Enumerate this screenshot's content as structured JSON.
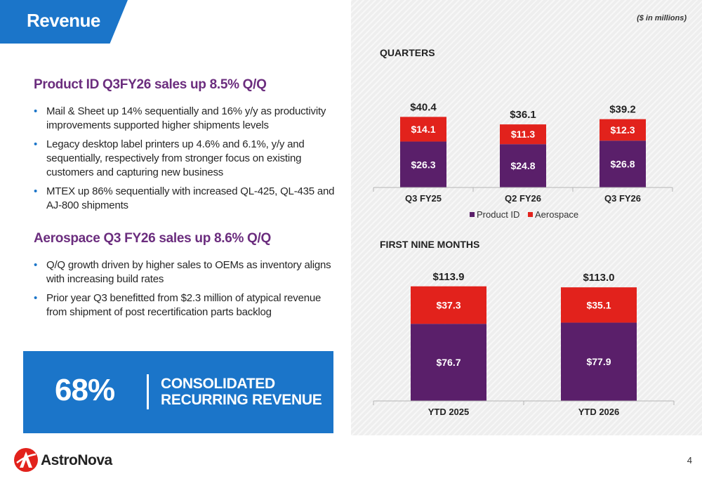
{
  "slide": {
    "title": "Revenue",
    "units_note": "($ in millions)",
    "page_number": "4"
  },
  "left": {
    "section1": {
      "title": "Product ID Q3FY26 sales up 8.5% Q/Q",
      "bullets": [
        "Mail & Sheet up 14% sequentially and 16% y/y as productivity improvements supported higher shipments levels",
        "Legacy desktop label printers up 4.6% and 6.1%, y/y and sequentially, respectively from stronger focus on existing customers and capturing new business",
        "MTEX up 86% sequentially with increased QL-425, QL-435 and AJ-800 shipments"
      ]
    },
    "section2": {
      "title": "Aerospace Q3 FY26 sales up 8.6% Q/Q",
      "bullets": [
        "Q/Q growth driven by higher sales to OEMs as inventory aligns with increasing build rates",
        "Prior year Q3 benefitted from $2.3 million of atypical revenue from shipment of post recertification parts backlog"
      ]
    },
    "callout": {
      "value": "68%",
      "label_line1": "CONSOLIDATED",
      "label_line2": "RECURRING REVENUE"
    }
  },
  "logo": {
    "name": "AstroNova"
  },
  "colors": {
    "product_id": "#5a1f6a",
    "aerospace": "#e2221c",
    "accent_blue": "#1b75c9",
    "title_purple": "#6b2d7e"
  },
  "chart_data": [
    {
      "type": "bar",
      "stacked": true,
      "title": "QUARTERS",
      "categories": [
        "Q3 FY25",
        "Q2 FY26",
        "Q3 FY26"
      ],
      "series": [
        {
          "name": "Product ID",
          "values": [
            26.3,
            24.8,
            26.8
          ],
          "labels": [
            "$26.3",
            "$24.8",
            "$26.8"
          ]
        },
        {
          "name": "Aerospace",
          "values": [
            14.1,
            11.3,
            12.3
          ],
          "labels": [
            "$14.1",
            "$11.3",
            "$12.3"
          ]
        }
      ],
      "totals": [
        40.4,
        36.1,
        39.2
      ],
      "total_labels": [
        "$40.4",
        "$36.1",
        "$39.2"
      ],
      "legend": [
        "Product ID",
        "Aerospace"
      ],
      "legend_position": "bottom",
      "ylim": [
        0,
        45
      ],
      "grid": false
    },
    {
      "type": "bar",
      "stacked": true,
      "title": "FIRST NINE MONTHS",
      "categories": [
        "YTD 2025",
        "YTD 2026"
      ],
      "series": [
        {
          "name": "Product ID",
          "values": [
            76.7,
            77.9
          ],
          "labels": [
            "$76.7",
            "$77.9"
          ]
        },
        {
          "name": "Aerospace",
          "values": [
            37.3,
            35.1
          ],
          "labels": [
            "$37.3",
            "$35.1"
          ]
        }
      ],
      "totals": [
        113.9,
        113.0
      ],
      "total_labels": [
        "$113.9",
        "$113.0"
      ],
      "ylim": [
        0,
        125
      ],
      "grid": false
    }
  ]
}
